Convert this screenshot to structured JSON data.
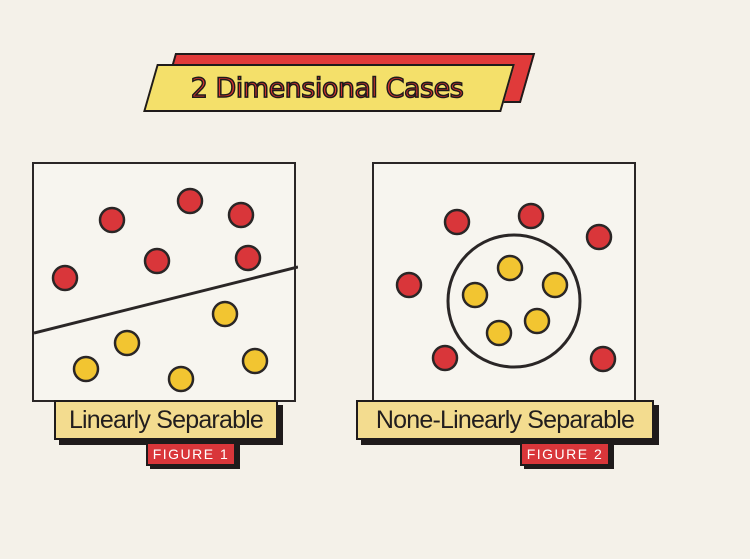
{
  "banner": {
    "title": "2 Dimensional Cases"
  },
  "figure1": {
    "label": "Linearly Separable",
    "caption": "FIGURE 1",
    "red_color": "#d9363a",
    "yellow_color": "#f2c531"
  },
  "figure2": {
    "label": "None-Linearly Separable",
    "caption": "FIGURE 2",
    "red_color": "#d9363a",
    "yellow_color": "#f2c531"
  }
}
